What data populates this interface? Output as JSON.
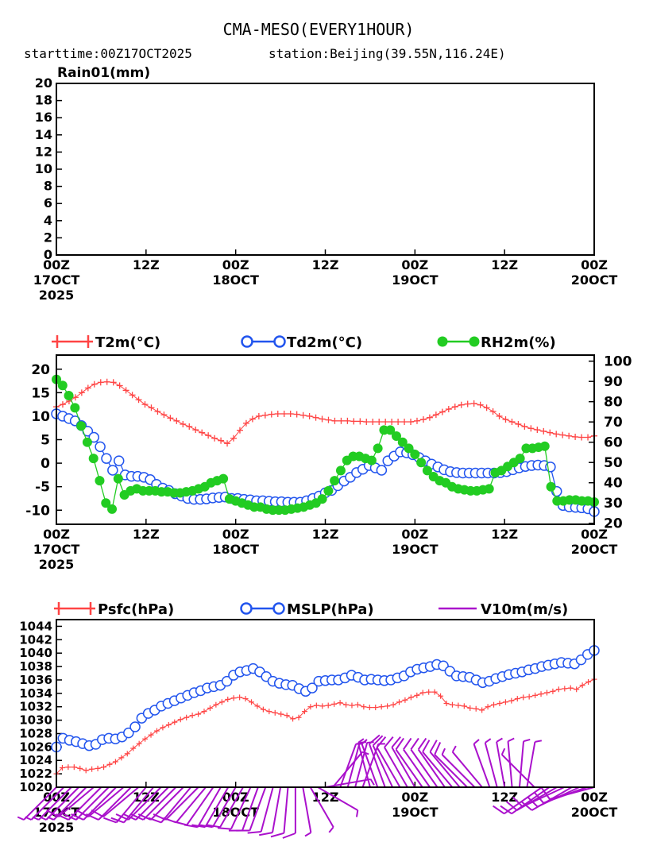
{
  "header": {
    "title": "CMA-MESO(EVERY1HOUR)",
    "subtitle_start": "starttime:00Z17OCT2025",
    "subtitle_station": "station:Beijing(39.55N,116.24E)"
  },
  "colors": {
    "t2m": "#ff4444",
    "td2m": "#2255ee",
    "rh2m": "#22cc22",
    "psfc": "#ff4444",
    "mslp": "#2255ee",
    "wind": "#aa11cc"
  },
  "time_axis": {
    "hours_total": 72,
    "ticks": [
      {
        "hour": 0,
        "line1": "00Z",
        "line2": "17OCT",
        "line3": "2025"
      },
      {
        "hour": 12,
        "line1": "12Z",
        "line2": "",
        "line3": ""
      },
      {
        "hour": 24,
        "line1": "00Z",
        "line2": "18OCT",
        "line3": ""
      },
      {
        "hour": 36,
        "line1": "12Z",
        "line2": "",
        "line3": ""
      },
      {
        "hour": 48,
        "line1": "00Z",
        "line2": "19OCT",
        "line3": ""
      },
      {
        "hour": 60,
        "line1": "12Z",
        "line2": "",
        "line3": ""
      },
      {
        "hour": 72,
        "line1": "00Z",
        "line2": "20OCT",
        "line3": ""
      }
    ]
  },
  "chart_data": [
    {
      "type": "bar",
      "title": "Rain01(mm)",
      "ylim": [
        0,
        20
      ],
      "yticks": [
        0,
        2,
        4,
        6,
        8,
        10,
        12,
        14,
        16,
        18,
        20
      ],
      "x": [],
      "values": []
    },
    {
      "type": "line",
      "legend": [
        "T2m(°C)",
        "Td2m(°C)",
        "RH2m(%)"
      ],
      "ylim_left": [
        -13,
        23
      ],
      "yticks_left": [
        -10,
        -5,
        0,
        5,
        10,
        15,
        20
      ],
      "ylim_right": [
        19.5,
        103
      ],
      "yticks_right": [
        20,
        30,
        40,
        50,
        60,
        70,
        80,
        90,
        100
      ],
      "series": [
        {
          "name": "T2m(°C)",
          "axis": "left",
          "marker": "plus",
          "values": [
            12,
            12.5,
            13.2,
            14,
            15,
            16,
            16.8,
            17.2,
            17.3,
            17.2,
            16.5,
            15.5,
            14.5,
            13.5,
            12.5,
            11.8,
            11,
            10.3,
            9.6,
            9,
            8.3,
            7.8,
            7.1,
            6.5,
            5.9,
            5.3,
            4.8,
            4.2,
            5.3,
            7,
            8.5,
            9.4,
            10,
            10.2,
            10.4,
            10.5,
            10.5,
            10.5,
            10.4,
            10.2,
            10,
            9.7,
            9.4,
            9.2,
            9,
            9,
            9,
            8.9,
            8.9,
            8.8,
            8.8,
            8.8,
            8.8,
            8.8,
            8.8,
            8.8,
            8.8,
            9,
            9.3,
            9.7,
            10.3,
            10.9,
            11.5,
            12,
            12.4,
            12.6,
            12.7,
            12.4,
            11.8,
            11,
            10,
            9.3,
            8.8,
            8.3,
            7.8,
            7.4,
            7.1,
            6.8,
            6.5,
            6.2,
            6,
            5.8,
            5.6,
            5.5,
            5.5,
            5.8
          ]
        },
        {
          "name": "Td2m(°C)",
          "axis": "left",
          "marker": "circle",
          "values": [
            10.5,
            10,
            9.5,
            9,
            8,
            6.8,
            5.5,
            3.5,
            1,
            -1.5,
            0.5,
            -2.5,
            -2.8,
            -2.8,
            -3,
            -3.5,
            -4.5,
            -5.3,
            -5.8,
            -6.5,
            -7,
            -7.5,
            -7.7,
            -7.7,
            -7.6,
            -7.4,
            -7.3,
            -7.2,
            -7.5,
            -7.5,
            -7.7,
            -7.8,
            -8,
            -8,
            -8.1,
            -8.2,
            -8.2,
            -8.3,
            -8.3,
            -8.3,
            -8,
            -7.5,
            -7,
            -6.3,
            -5.8,
            -4.8,
            -3.8,
            -3,
            -2,
            -1.3,
            -0.5,
            -1,
            -1.5,
            0.5,
            1.5,
            2.4,
            2.2,
            1.8,
            1.2,
            0.5,
            -0.2,
            -0.8,
            -1.4,
            -1.8,
            -2,
            -2.1,
            -2.1,
            -2.1,
            -2.1,
            -2.1,
            -2.1,
            -2,
            -1.8,
            -1.4,
            -1,
            -0.7,
            -0.5,
            -0.4,
            -0.5,
            -0.8,
            -6,
            -9,
            -9.3,
            -9.4,
            -9.5,
            -9.7,
            -10.3
          ]
        },
        {
          "name": "RH2m(%)",
          "axis": "right",
          "marker": "filled-circle",
          "values": [
            91,
            88,
            83,
            77,
            68,
            60,
            52,
            41,
            30,
            27,
            42,
            34,
            36,
            37,
            36,
            36,
            36,
            35.5,
            35.5,
            35,
            35,
            35.5,
            36,
            37,
            38,
            40,
            41,
            42,
            32,
            31,
            30,
            29,
            28,
            28,
            27,
            26.5,
            26.5,
            26.5,
            27,
            27.5,
            28,
            29,
            30,
            32,
            36,
            41,
            46,
            51,
            53,
            53,
            52,
            51,
            57,
            66,
            66,
            63,
            60,
            57,
            54,
            50,
            46,
            43,
            41,
            40,
            38,
            37,
            36.5,
            36,
            36,
            36.5,
            37,
            45,
            46,
            48,
            50,
            52,
            57,
            57,
            57.5,
            58,
            38,
            31,
            31,
            31.5,
            31.5,
            31,
            31,
            30.5
          ]
        }
      ]
    },
    {
      "type": "line",
      "legend": [
        "Psfc(hPa)",
        "MSLP(hPa)",
        "V10m(m/s)"
      ],
      "ylim": [
        1020,
        1045
      ],
      "yticks": [
        1020,
        1022,
        1024,
        1026,
        1028,
        1030,
        1032,
        1034,
        1036,
        1038,
        1040,
        1042,
        1044
      ],
      "series": [
        {
          "name": "Psfc(hPa)",
          "marker": "plus",
          "values": [
            1022,
            1022.9,
            1023,
            1023,
            1022.8,
            1022.5,
            1022.7,
            1022.8,
            1023,
            1023.4,
            1023.8,
            1024.4,
            1025,
            1025.8,
            1026.5,
            1027.2,
            1027.8,
            1028.4,
            1028.9,
            1029.3,
            1029.7,
            1030.1,
            1030.4,
            1030.7,
            1030.9,
            1031.3,
            1031.8,
            1032.3,
            1032.7,
            1033.1,
            1033.3,
            1033.4,
            1033.2,
            1032.7,
            1032.1,
            1031.6,
            1031.3,
            1031.1,
            1030.9,
            1030.7,
            1030.2,
            1030.4,
            1031.3,
            1032,
            1032.2,
            1032.1,
            1032.2,
            1032.4,
            1032.6,
            1032.3,
            1032.2,
            1032.3,
            1032,
            1031.9,
            1031.9,
            1032,
            1032.1,
            1032.3,
            1032.7,
            1033,
            1033.4,
            1033.7,
            1034.1,
            1034.2,
            1034.2,
            1033.6,
            1032.5,
            1032.3,
            1032.2,
            1032.1,
            1031.8,
            1031.7,
            1031.5,
            1032,
            1032.3,
            1032.5,
            1032.7,
            1032.9,
            1033.2,
            1033.4,
            1033.5,
            1033.7,
            1033.9,
            1034.1,
            1034.3,
            1034.6,
            1034.7,
            1034.8,
            1034.6,
            1035.2,
            1035.7,
            1036.1
          ]
        },
        {
          "name": "MSLP(hPa)",
          "marker": "circle",
          "values": [
            1026,
            1027.3,
            1027,
            1026.8,
            1026.5,
            1026.2,
            1026.4,
            1027.1,
            1027.3,
            1027.2,
            1027.5,
            1028.1,
            1029,
            1030.3,
            1031,
            1031.5,
            1032.1,
            1032.5,
            1032.9,
            1033.3,
            1033.7,
            1034.1,
            1034.4,
            1034.8,
            1035,
            1035.2,
            1035.8,
            1036.7,
            1037.2,
            1037.4,
            1037.7,
            1037.2,
            1036.5,
            1035.8,
            1035.5,
            1035.3,
            1035.2,
            1034.7,
            1034.3,
            1034.8,
            1035.8,
            1035.9,
            1036,
            1036,
            1036.3,
            1036.7,
            1036.4,
            1036,
            1036.1,
            1036,
            1035.9,
            1036,
            1036.3,
            1036.6,
            1037.2,
            1037.6,
            1037.8,
            1038,
            1038.3,
            1038.1,
            1037.3,
            1036.6,
            1036.5,
            1036.4,
            1036,
            1035.6,
            1035.8,
            1036.2,
            1036.5,
            1036.8,
            1037,
            1037.2,
            1037.5,
            1037.7,
            1038,
            1038.2,
            1038.4,
            1038.6,
            1038.5,
            1038.4,
            1039,
            1039.8,
            1040.4
          ]
        },
        {
          "name": "V10m(m/s)",
          "marker": "barb",
          "hours": [
            0,
            1,
            2,
            3,
            4,
            5,
            6,
            7,
            8,
            9,
            10,
            11,
            12,
            13,
            14,
            15,
            16,
            17,
            18,
            19,
            20,
            21,
            22,
            23,
            24,
            25,
            26,
            27,
            28,
            29,
            30,
            31,
            32,
            33,
            34,
            35,
            36,
            37,
            38,
            39,
            40,
            41,
            42,
            43,
            44,
            45,
            46,
            47,
            48,
            49,
            50,
            51,
            52,
            53,
            54,
            55,
            56,
            57,
            58,
            59,
            60,
            61,
            62,
            63,
            64,
            65,
            66,
            67,
            68,
            69,
            70,
            71,
            72
          ],
          "direction_deg": [
            225,
            225,
            225,
            225,
            225,
            230,
            225,
            225,
            225,
            230,
            225,
            230,
            220,
            220,
            225,
            225,
            225,
            225,
            220,
            225,
            220,
            215,
            210,
            210,
            210,
            210,
            205,
            200,
            200,
            195,
            190,
            185,
            180,
            170,
            150,
            120,
            80,
            40,
            20,
            15,
            15,
            20,
            345,
            340,
            340,
            335,
            330,
            330,
            330,
            325,
            325,
            325,
            325,
            320,
            320,
            315,
            315,
            320,
            340,
            345,
            350,
            355,
            5,
            10,
            315,
            235,
            235,
            240,
            245,
            240,
            245,
            250,
            255
          ],
          "speed_ms": [
            2,
            3,
            3,
            3,
            3,
            4,
            4,
            4,
            4,
            4,
            4,
            4,
            5,
            5,
            5,
            5,
            5,
            5,
            5,
            5,
            5,
            5,
            5,
            5,
            5,
            5,
            5,
            5,
            5,
            4,
            4,
            4,
            4,
            3,
            3,
            2,
            2,
            2,
            2,
            2,
            2,
            2,
            3,
            3,
            4,
            4,
            4,
            5,
            5,
            5,
            5,
            5,
            4,
            4,
            4,
            4,
            3,
            3,
            3,
            3,
            2,
            2,
            2,
            2,
            3,
            4,
            4,
            4,
            4,
            4,
            4,
            4,
            4
          ]
        }
      ]
    }
  ]
}
